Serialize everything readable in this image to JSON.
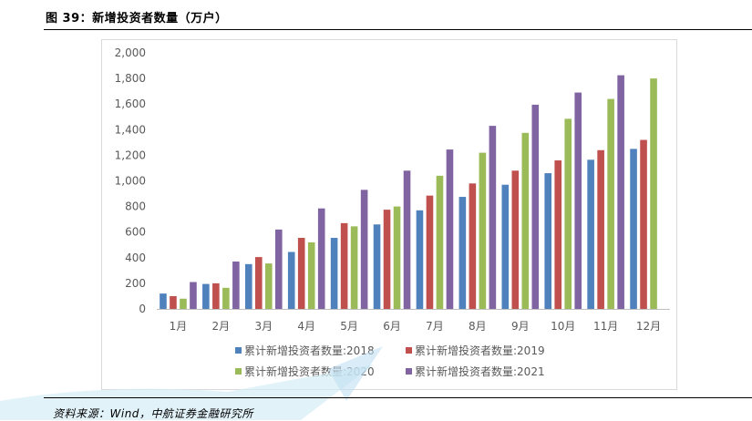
{
  "header": {
    "title": "图 39：新增投资者数量（万户）"
  },
  "footer": {
    "source": "资料来源：Wind，中航证券金融研究所"
  },
  "chart_data": {
    "type": "bar",
    "title": "",
    "xlabel": "",
    "ylabel": "",
    "ylim": [
      0,
      2000
    ],
    "yticks": [
      "0",
      "200",
      "400",
      "600",
      "800",
      "1,000",
      "1,200",
      "1,400",
      "1,600",
      "1,800",
      "2,000"
    ],
    "grid": false,
    "legend_position": "bottom",
    "categories": [
      "1月",
      "2月",
      "3月",
      "4月",
      "5月",
      "6月",
      "7月",
      "8月",
      "9月",
      "10月",
      "11月",
      "12月"
    ],
    "series": [
      {
        "name": "累计新增投资者数量:2018",
        "color": "#4f81bd",
        "values": [
          120,
          195,
          350,
          445,
          555,
          660,
          770,
          875,
          970,
          1060,
          1165,
          1250
        ]
      },
      {
        "name": "累计新增投资者数量:2019",
        "color": "#c0504d",
        "values": [
          100,
          200,
          405,
          555,
          670,
          775,
          885,
          980,
          1080,
          1160,
          1240,
          1320
        ]
      },
      {
        "name": "累计新增投资者数量:2020",
        "color": "#9bbb59",
        "values": [
          80,
          165,
          355,
          520,
          645,
          800,
          1040,
          1220,
          1375,
          1485,
          1640,
          1800
        ]
      },
      {
        "name": "累计新增投资者数量:2021",
        "color": "#8064a2",
        "values": [
          210,
          370,
          620,
          785,
          930,
          1080,
          1245,
          1430,
          1595,
          1690,
          1825,
          null
        ]
      }
    ]
  }
}
